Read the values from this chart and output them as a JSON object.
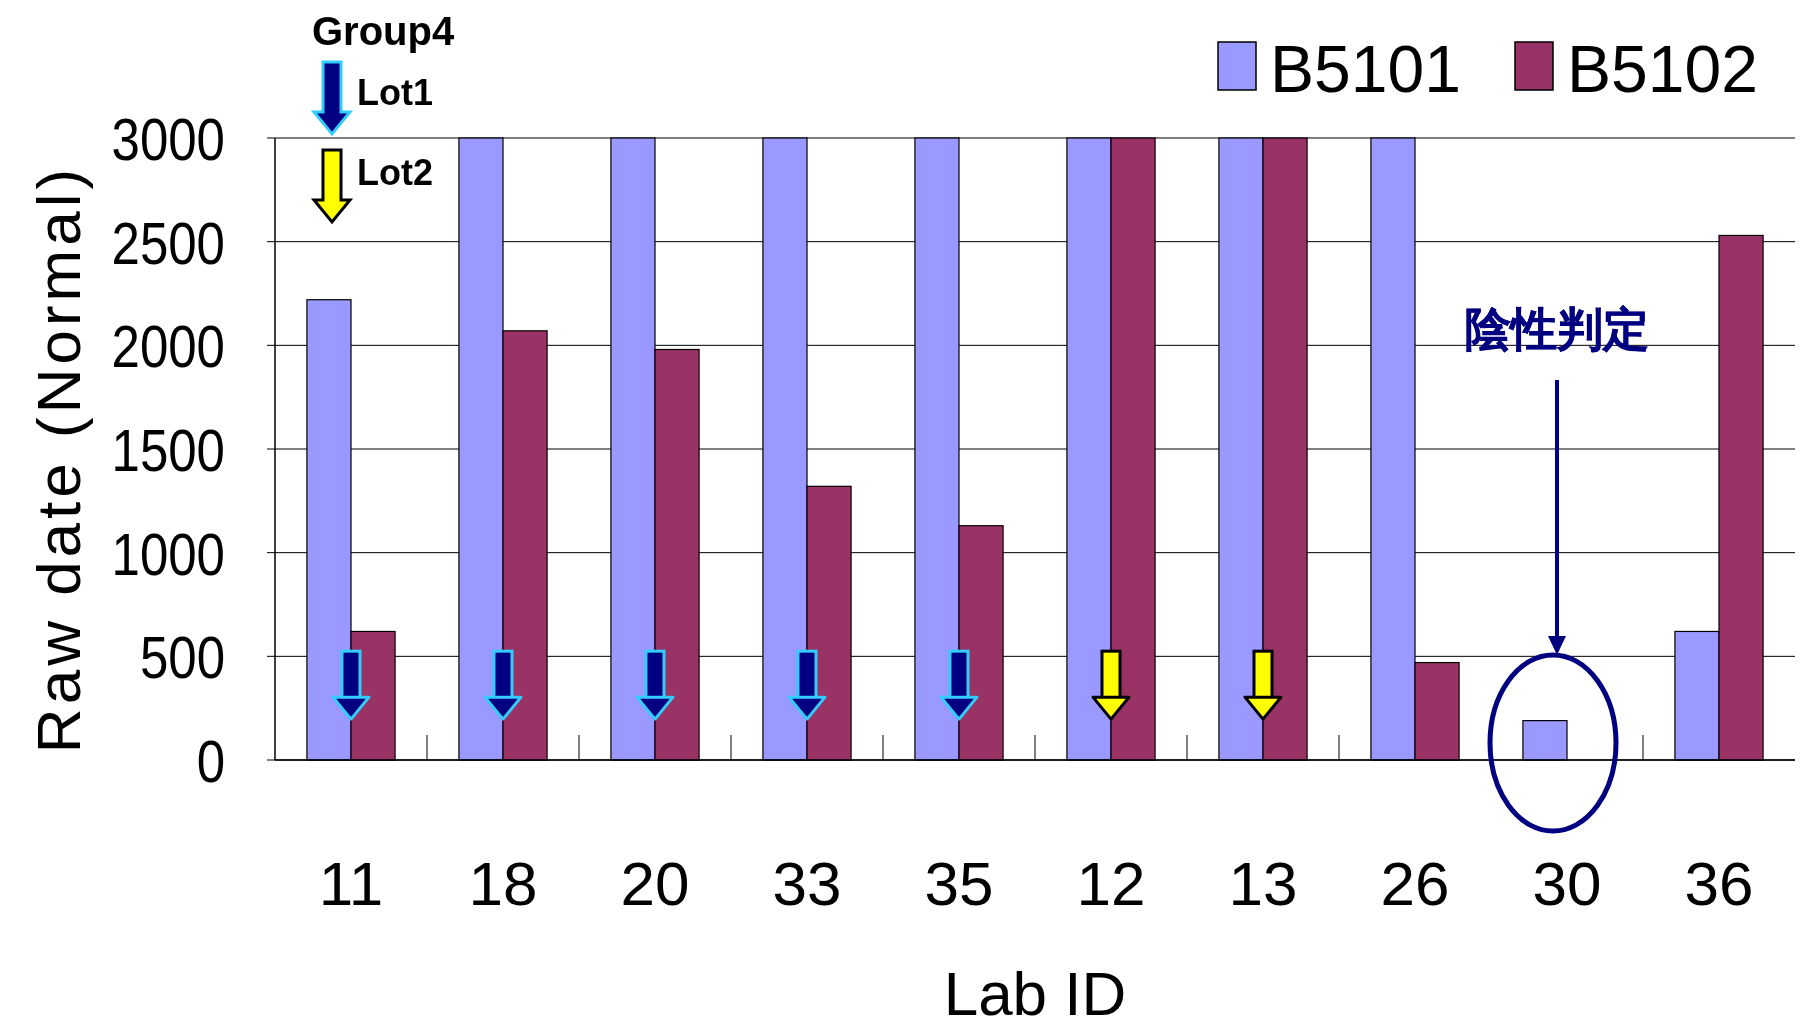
{
  "chart_data": {
    "type": "bar",
    "xlabel": "Lab ID",
    "ylabel": "Raw date (Normal)",
    "categories": [
      "11",
      "18",
      "20",
      "33",
      "35",
      "12",
      "13",
      "26",
      "30",
      "36"
    ],
    "series": [
      {
        "name": "B5101",
        "color": "#9999ff",
        "values": [
          2220,
          3000,
          3000,
          3000,
          3000,
          3000,
          3000,
          3000,
          190,
          620
        ]
      },
      {
        "name": "B5102",
        "color": "#993366",
        "values": [
          620,
          2070,
          1980,
          1320,
          1130,
          3000,
          3000,
          470,
          null,
          2530
        ]
      },
      {
        "name": "Lot1",
        "type": "scatter",
        "color": "#000080",
        "marker": "triangle",
        "values": [
          250,
          250,
          250,
          250,
          250,
          null,
          null,
          null,
          null,
          null
        ]
      },
      {
        "name": "Lot2",
        "type": "scatter",
        "color": "#ffff00",
        "marker": "triangle",
        "values": [
          null,
          null,
          null,
          null,
          null,
          250,
          250,
          null,
          null,
          null
        ]
      }
    ],
    "ylim": [
      0,
      3000
    ],
    "yticks": [
      0,
      500,
      1000,
      1500,
      2000,
      2500,
      3000
    ],
    "grid": "y",
    "legend": "top right",
    "annotations": [
      "Group4",
      "陰性判定"
    ]
  }
}
